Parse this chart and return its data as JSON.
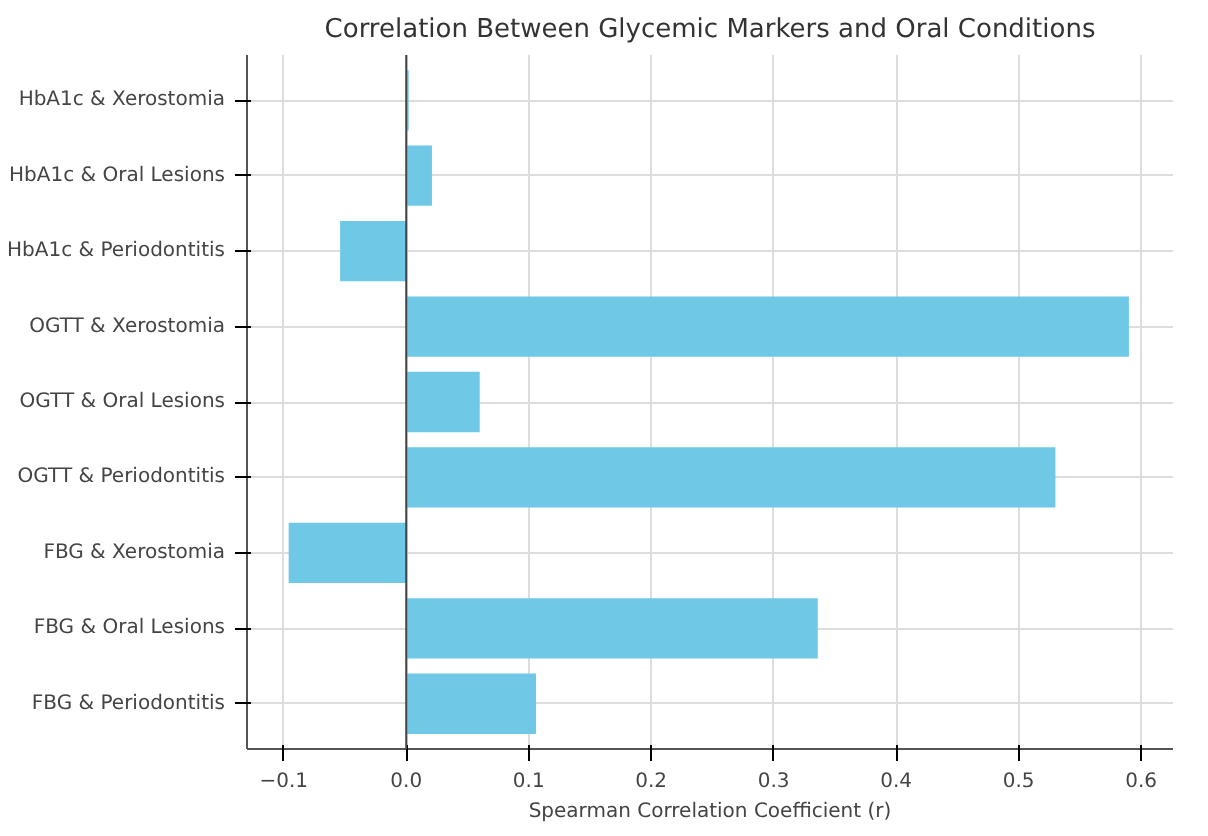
{
  "chart_data": {
    "type": "bar",
    "orientation": "horizontal",
    "title": "Correlation Between Glycemic Markers and Oral Conditions",
    "xlabel": "Spearman Correlation Coefficient (r)",
    "categories": [
      "HbA1c & Xerostomia",
      "HbA1c & Oral Lesions",
      "HbA1c & Periodontitis",
      "OGTT & Xerostomia",
      "OGTT & Oral Lesions",
      "OGTT & Periodontitis",
      "FBG & Xerostomia",
      "FBG & Oral Lesions",
      "FBG & Periodontitis"
    ],
    "values": [
      0.002,
      0.021,
      -0.054,
      0.59,
      0.06,
      0.53,
      -0.096,
      0.336,
      0.106
    ],
    "color": "#6ec8e6",
    "xlim": [
      -0.13,
      0.626
    ],
    "xticks": [
      {
        "value": -0.1,
        "label": "−0.1"
      },
      {
        "value": 0,
        "label": "0.0"
      },
      {
        "value": 0.1,
        "label": "0.1"
      },
      {
        "value": 0.2,
        "label": "0.2"
      },
      {
        "value": 0.3,
        "label": "0.3"
      },
      {
        "value": 0.4,
        "label": "0.4"
      },
      {
        "value": 0.5,
        "label": "0.5"
      },
      {
        "value": 0.6,
        "label": "0.6"
      }
    ],
    "grid": true
  }
}
